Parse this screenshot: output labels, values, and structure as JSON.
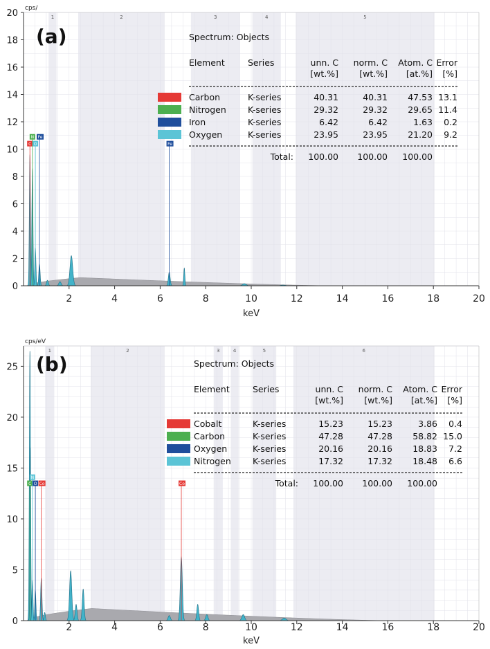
{
  "chart_data": [
    {
      "type": "area",
      "panel_label": "(a)",
      "ylabel": "cps/",
      "xlabel": "keV",
      "xlim": [
        0,
        20
      ],
      "ylim": [
        0,
        20
      ],
      "x_ticks": [
        "2",
        "4",
        "6",
        "8",
        "10",
        "12",
        "14",
        "16",
        "18",
        "20"
      ],
      "y_ticks": [
        "0",
        "2",
        "4",
        "6",
        "8",
        "10",
        "12",
        "14",
        "16",
        "18",
        "20"
      ],
      "grid": true,
      "regions": [
        {
          "label": "1",
          "x0": 1.1,
          "x1": 1.45
        },
        {
          "label": "2",
          "x0": 2.4,
          "x1": 6.2
        },
        {
          "label": "3",
          "x0": 7.35,
          "x1": 9.5
        },
        {
          "label": "4",
          "x0": 10.05,
          "x1": 11.3
        },
        {
          "label": "5",
          "x0": 11.95,
          "x1": 18.05
        }
      ],
      "markers": [
        {
          "label": "C",
          "x": 0.28,
          "y": 10.4,
          "color": "#e53935"
        },
        {
          "label": "N",
          "x": 0.39,
          "y": 10.9,
          "color": "#4caf50"
        },
        {
          "label": "O",
          "x": 0.52,
          "y": 10.4,
          "color": "#5bc4d6"
        },
        {
          "label": "Fe",
          "x": 0.7,
          "y": 10.9,
          "color": "#1f4e9c"
        },
        {
          "label": "Fe",
          "x": 6.4,
          "y": 10.4,
          "color": "#1f4e9c"
        }
      ],
      "peaks": [
        {
          "x": 0.28,
          "y": 9.6,
          "w": 0.025
        },
        {
          "x": 0.39,
          "y": 8.6,
          "w": 0.025
        },
        {
          "x": 0.52,
          "y": 2.8,
          "w": 0.025
        },
        {
          "x": 0.7,
          "y": 1.6,
          "w": 0.03
        },
        {
          "x": 1.05,
          "y": 0.4,
          "w": 0.04
        },
        {
          "x": 1.6,
          "y": 0.3,
          "w": 0.05
        },
        {
          "x": 2.1,
          "y": 2.2,
          "w": 0.06
        },
        {
          "x": 6.4,
          "y": 1.0,
          "w": 0.04
        },
        {
          "x": 7.06,
          "y": 1.3,
          "w": 0.025
        },
        {
          "x": 9.7,
          "y": 0.15,
          "w": 0.08
        },
        {
          "x": 11.4,
          "y": 0.05,
          "w": 0.1
        }
      ],
      "background": {
        "peak_x": 2.5,
        "peak_y": 0.6,
        "end_x": 13.5
      },
      "table": {
        "title": "Spectrum: Objects",
        "headers": [
          "Element",
          "Series",
          "unn. C",
          "norm. C",
          "Atom. C",
          "Error"
        ],
        "units": [
          "",
          "",
          "[wt.%]",
          "[wt.%]",
          "[at.%]",
          "[%]"
        ],
        "rows": [
          {
            "element": "Carbon",
            "series": "K-series",
            "unn": "40.31",
            "norm": "40.31",
            "atom": "47.53",
            "error": "13.1",
            "color": "#e53935"
          },
          {
            "element": "Nitrogen",
            "series": "K-series",
            "unn": "29.32",
            "norm": "29.32",
            "atom": "29.65",
            "error": "11.4",
            "color": "#4caf50"
          },
          {
            "element": "Iron",
            "series": "K-series",
            "unn": "6.42",
            "norm": "6.42",
            "atom": "1.63",
            "error": "0.2",
            "color": "#1f4e9c"
          },
          {
            "element": "Oxygen",
            "series": "K-series",
            "unn": "23.95",
            "norm": "23.95",
            "atom": "21.20",
            "error": "9.2",
            "color": "#5bc4d6"
          }
        ],
        "total_label": "Total:",
        "totals": [
          "100.00",
          "100.00",
          "100.00"
        ]
      }
    },
    {
      "type": "area",
      "panel_label": "(b)",
      "ylabel": "cps/eV",
      "xlabel": "keV",
      "xlim": [
        0,
        20
      ],
      "ylim": [
        0,
        27
      ],
      "x_ticks": [
        "2",
        "4",
        "6",
        "8",
        "10",
        "12",
        "14",
        "16",
        "18",
        "20"
      ],
      "y_ticks": [
        "0",
        "5",
        "10",
        "15",
        "20",
        "25"
      ],
      "grid": true,
      "regions": [
        {
          "label": "1",
          "x0": 0.95,
          "x1": 1.35
        },
        {
          "label": "2",
          "x0": 2.95,
          "x1": 6.2
        },
        {
          "label": "3",
          "x0": 8.35,
          "x1": 8.75
        },
        {
          "label": "4",
          "x0": 9.1,
          "x1": 9.45
        },
        {
          "label": "5",
          "x0": 10.05,
          "x1": 11.1
        },
        {
          "label": "6",
          "x0": 11.85,
          "x1": 18.05
        }
      ],
      "markers": [
        {
          "label": "C",
          "x": 0.28,
          "y": 13.5,
          "color": "#4caf50"
        },
        {
          "label": "N",
          "x": 0.39,
          "y": 14.1,
          "color": "#5bc4d6"
        },
        {
          "label": "O",
          "x": 0.52,
          "y": 13.5,
          "color": "#1f4e9c"
        },
        {
          "label": "Co",
          "x": 0.78,
          "y": 13.5,
          "color": "#e53935"
        },
        {
          "label": "Co",
          "x": 6.93,
          "y": 13.5,
          "color": "#e53935"
        }
      ],
      "peaks": [
        {
          "x": 0.28,
          "y": 26.5,
          "w": 0.025
        },
        {
          "x": 0.3,
          "y": 17.0,
          "w": 0.02
        },
        {
          "x": 0.39,
          "y": 4.0,
          "w": 0.025
        },
        {
          "x": 0.52,
          "y": 3.0,
          "w": 0.025
        },
        {
          "x": 0.78,
          "y": 4.2,
          "w": 0.03
        },
        {
          "x": 0.93,
          "y": 0.8,
          "w": 0.03
        },
        {
          "x": 2.07,
          "y": 4.9,
          "w": 0.05
        },
        {
          "x": 2.31,
          "y": 1.6,
          "w": 0.04
        },
        {
          "x": 2.62,
          "y": 3.1,
          "w": 0.04
        },
        {
          "x": 6.4,
          "y": 0.5,
          "w": 0.05
        },
        {
          "x": 6.93,
          "y": 6.3,
          "w": 0.045
        },
        {
          "x": 7.65,
          "y": 1.6,
          "w": 0.04
        },
        {
          "x": 8.05,
          "y": 0.6,
          "w": 0.05
        },
        {
          "x": 9.65,
          "y": 0.6,
          "w": 0.06
        },
        {
          "x": 11.45,
          "y": 0.25,
          "w": 0.08
        }
      ],
      "background": {
        "peak_x": 3.0,
        "peak_y": 1.2,
        "end_x": 16.0
      },
      "table": {
        "title": "Spectrum: Objects",
        "headers": [
          "Element",
          "Series",
          "unn. C",
          "norm. C",
          "Atom. C",
          "Error"
        ],
        "units": [
          "",
          "",
          "[wt.%]",
          "[wt.%]",
          "[at.%]",
          "[%]"
        ],
        "rows": [
          {
            "element": "Cobalt",
            "series": "K-series",
            "unn": "15.23",
            "norm": "15.23",
            "atom": "3.86",
            "error": "0.4",
            "color": "#e53935"
          },
          {
            "element": "Carbon",
            "series": "K-series",
            "unn": "47.28",
            "norm": "47.28",
            "atom": "58.82",
            "error": "15.0",
            "color": "#4caf50"
          },
          {
            "element": "Oxygen",
            "series": "K-series",
            "unn": "20.16",
            "norm": "20.16",
            "atom": "18.83",
            "error": "7.2",
            "color": "#1f4e9c"
          },
          {
            "element": "Nitrogen",
            "series": "K-series",
            "unn": "17.32",
            "norm": "17.32",
            "atom": "18.48",
            "error": "6.6",
            "color": "#5bc4d6"
          }
        ],
        "total_label": "Total:",
        "totals": [
          "100.00",
          "100.00",
          "100.00"
        ]
      }
    }
  ]
}
